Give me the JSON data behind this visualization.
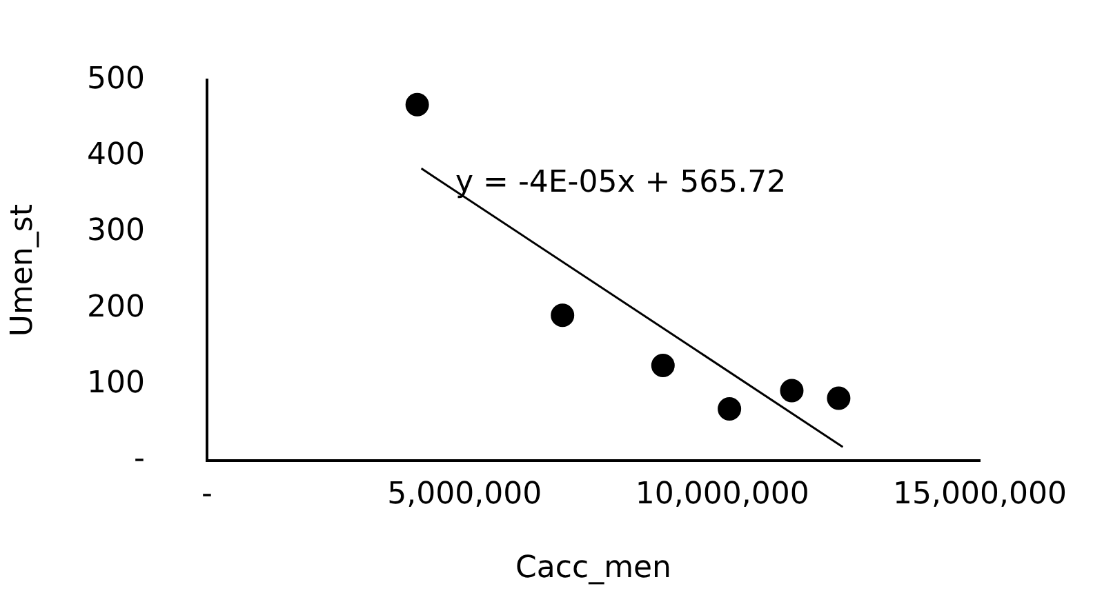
{
  "chart_data": {
    "type": "scatter",
    "xlabel": "Cacc_men",
    "ylabel": "Umen_st",
    "xlim": [
      0,
      15000000
    ],
    "xticks": [
      {
        "value": 0,
        "label": "-"
      },
      {
        "value": 5000000,
        "label": "5,000,000"
      },
      {
        "value": 10000000,
        "label": "10,000,000"
      },
      {
        "value": 15000000,
        "label": "15,000,000"
      }
    ],
    "ylim": [
      0,
      500
    ],
    "yticks": [
      {
        "value": 0,
        "label": "-"
      },
      100,
      200,
      300,
      400,
      500
    ],
    "grid": false,
    "legend": false,
    "marker": "circle",
    "series": [
      {
        "color": "#000000",
        "x": [
          4080000,
          6900000,
          8850000,
          10140000,
          11350000,
          12260000
        ],
        "values": [
          468,
          191,
          125,
          68,
          92,
          82
        ]
      },
      {
        "type": "line",
        "color": "#000000",
        "marker": "none",
        "line_style": "solid",
        "x": [
          4160000,
          12340000
        ],
        "values": [
          384,
          18
        ]
      }
    ],
    "annotations": [
      "y = -4E-05x + 565.72"
    ]
  }
}
